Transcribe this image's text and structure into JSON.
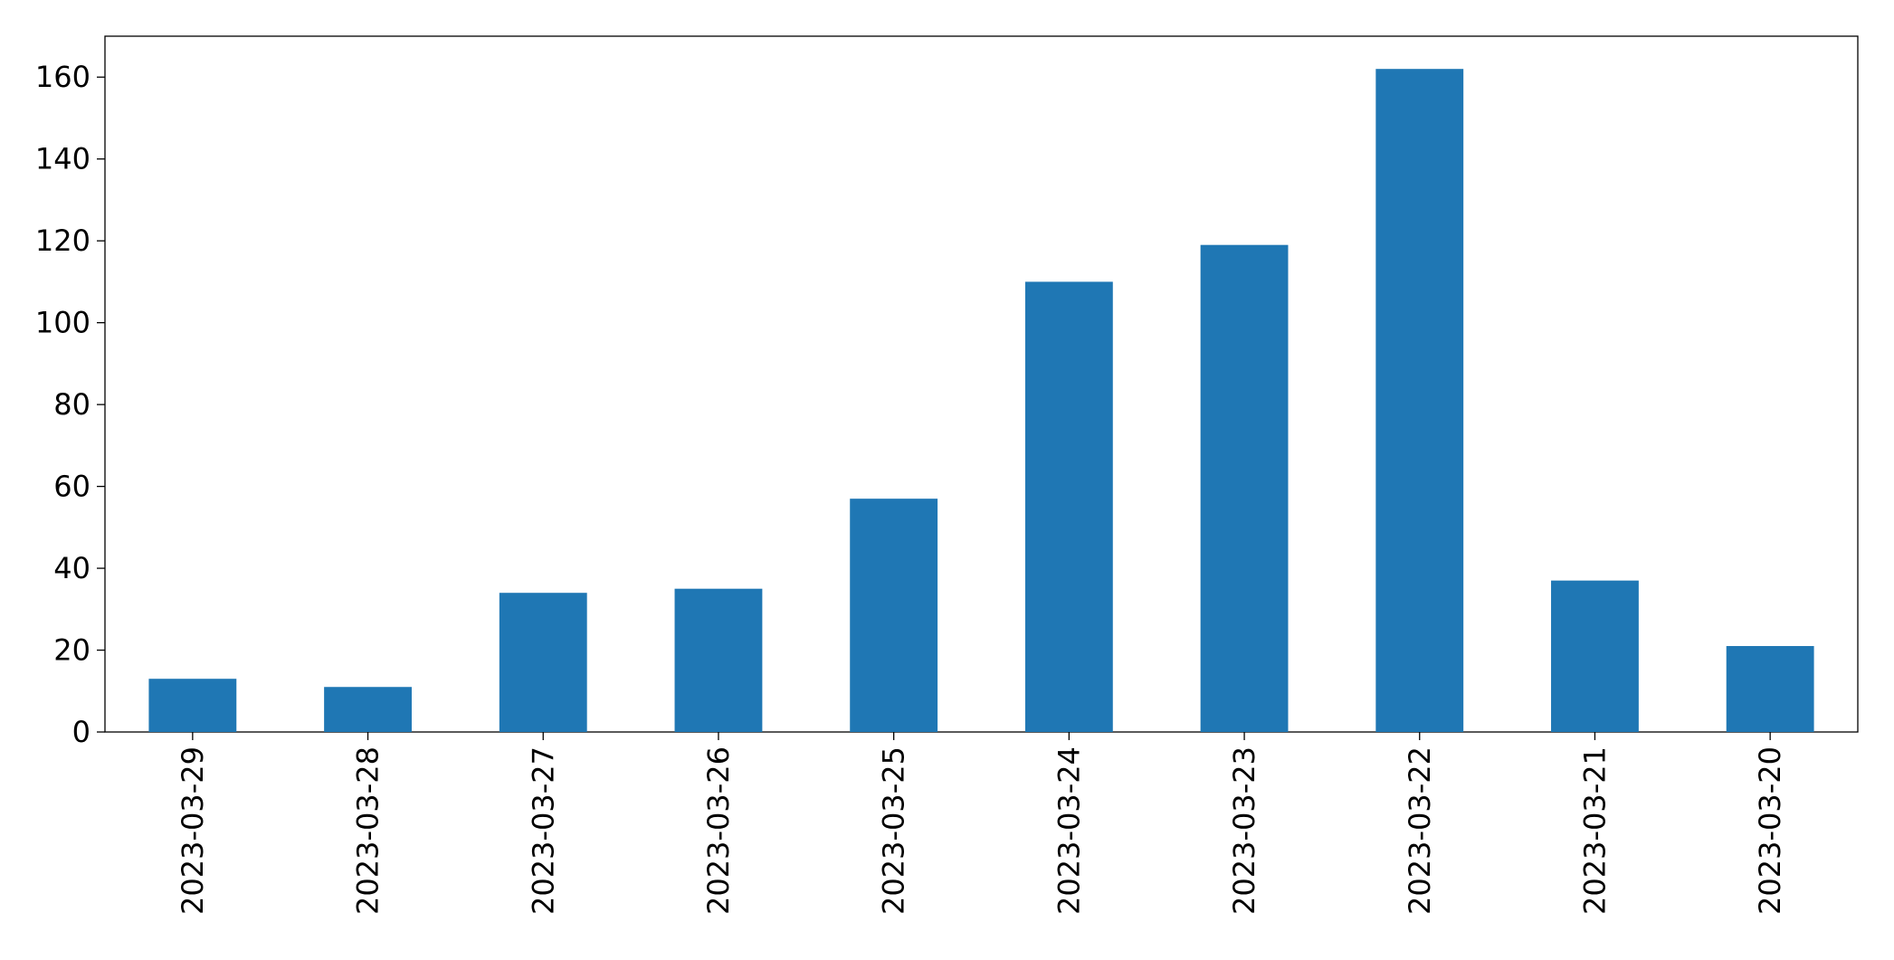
{
  "chart_data": {
    "type": "bar",
    "categories": [
      "2023-03-29",
      "2023-03-28",
      "2023-03-27",
      "2023-03-26",
      "2023-03-25",
      "2023-03-24",
      "2023-03-23",
      "2023-03-22",
      "2023-03-21",
      "2023-03-20"
    ],
    "values": [
      13,
      11,
      34,
      35,
      57,
      110,
      119,
      162,
      37,
      21
    ],
    "color": "#1f77b4",
    "ylim": [
      0,
      170
    ],
    "yticks": [
      0,
      20,
      40,
      60,
      80,
      100,
      120,
      140,
      160
    ],
    "grid": false
  }
}
